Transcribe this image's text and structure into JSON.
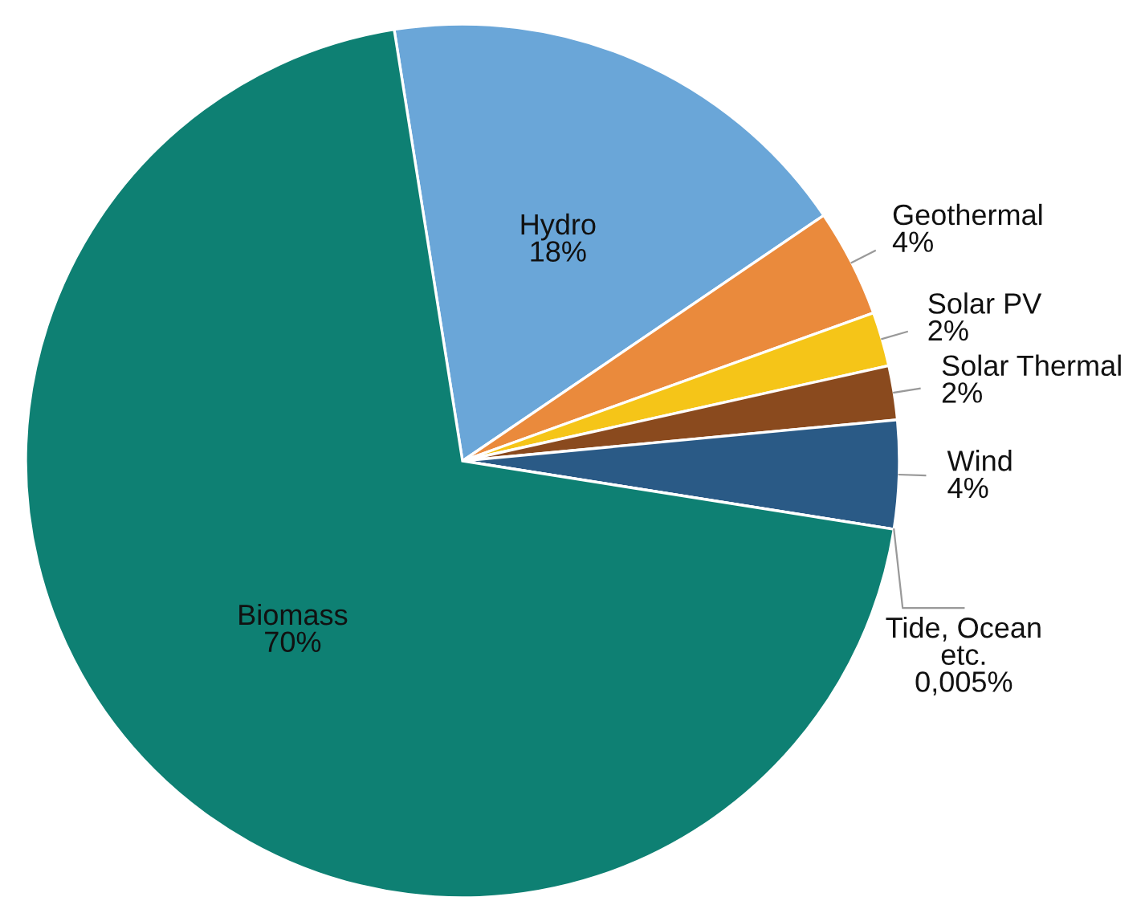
{
  "chart_data": {
    "type": "pie",
    "categories": [
      "Hydro",
      "Geothermal",
      "Solar PV",
      "Solar Thermal",
      "Wind",
      "Tide, Ocean\netc.",
      "Biomass"
    ],
    "values": [
      18,
      4,
      2,
      2,
      4,
      0.005,
      70
    ],
    "value_labels": [
      "18%",
      "4%",
      "2%",
      "2%",
      "4%",
      "0,005%",
      "70%"
    ],
    "colors": [
      "#6aa6d8",
      "#ea8a3c",
      "#f5c518",
      "#8a4a1e",
      "#2a5a86",
      "#1a3a5a",
      "#0e8073"
    ]
  }
}
